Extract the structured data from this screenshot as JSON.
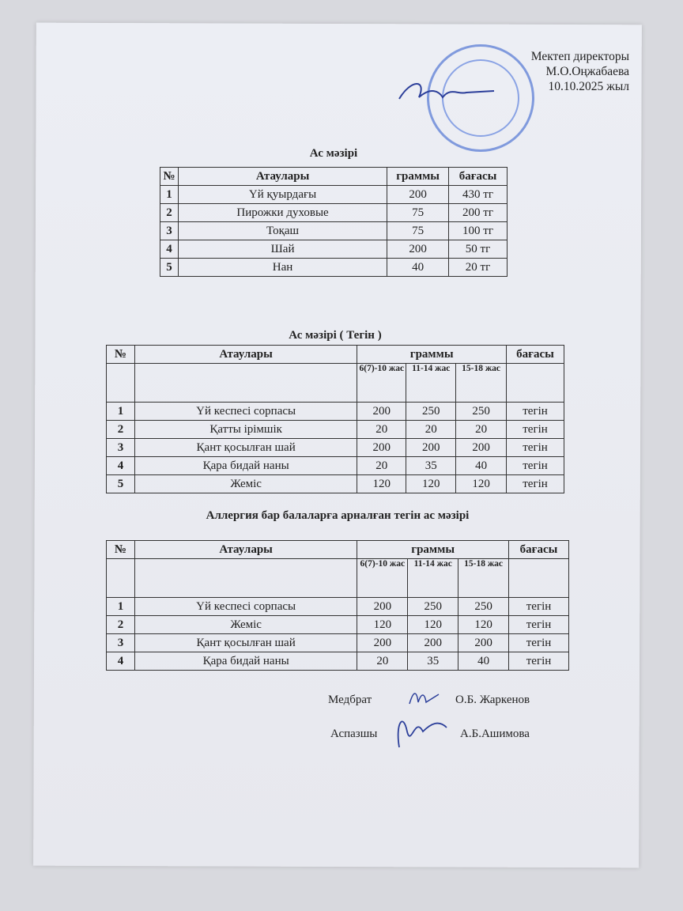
{
  "header": {
    "position": "Мектеп директоры",
    "name": "М.О.Оңжабаева",
    "date": "10.10.2025 жыл"
  },
  "menu1": {
    "title": "Ас  мәзірі",
    "columns": [
      "№",
      "Атаулары",
      "граммы",
      "бағасы"
    ],
    "rows": [
      [
        "1",
        "Үй қуырдағы",
        "200",
        "430 тг"
      ],
      [
        "2",
        "Пирожки духовые",
        "75",
        "200 тг"
      ],
      [
        "3",
        "Тоқаш",
        "75",
        "100 тг"
      ],
      [
        "4",
        "Шай",
        "200",
        "50 тг"
      ],
      [
        "5",
        "Нан",
        "40",
        "20 тг"
      ]
    ]
  },
  "menu2": {
    "title": "Ас мәзірі  ( Тегін )",
    "columns": [
      "№",
      "Атаулары",
      "граммы",
      "бағасы"
    ],
    "age_groups": [
      "6(7)-10 жас",
      "11-14 жас",
      "15-18 жас"
    ],
    "rows": [
      [
        "1",
        "Үй кеспесі сорпасы",
        "200",
        "250",
        "250",
        "тегін"
      ],
      [
        "2",
        "Қатты ірімшік",
        "20",
        "20",
        "20",
        "тегін"
      ],
      [
        "3",
        "Қант қосылған шай",
        "200",
        "200",
        "200",
        "тегін"
      ],
      [
        "4",
        "Қара бидай наны",
        "20",
        "35",
        "40",
        "тегін"
      ],
      [
        "5",
        "Жеміс",
        "120",
        "120",
        "120",
        "тегін"
      ]
    ]
  },
  "menu3": {
    "title": "Аллергия бар балаларға арналған тегін ас мәзірі",
    "columns": [
      "№",
      "Атаулары",
      "граммы",
      "бағасы"
    ],
    "age_groups": [
      "6(7)-10 жас",
      "11-14 жас",
      "15-18 жас"
    ],
    "rows": [
      [
        "1",
        "Үй кеспесі сорпасы",
        "200",
        "250",
        "250",
        "тегін"
      ],
      [
        "2",
        "Жеміс",
        "120",
        "120",
        "120",
        "тегін"
      ],
      [
        "3",
        "Қант қосылған шай",
        "200",
        "200",
        "200",
        "тегін"
      ],
      [
        "4",
        "Қара бидай наны",
        "20",
        "35",
        "40",
        "тегін"
      ]
    ]
  },
  "signatures": [
    {
      "role": "Медбрат",
      "name": "О.Б. Жаркенов"
    },
    {
      "role": "Аспазшы",
      "name": "А.Б.Ашимова"
    }
  ],
  "colors": {
    "stamp": "#5d7fd6",
    "ink": "#2c3f9a"
  }
}
